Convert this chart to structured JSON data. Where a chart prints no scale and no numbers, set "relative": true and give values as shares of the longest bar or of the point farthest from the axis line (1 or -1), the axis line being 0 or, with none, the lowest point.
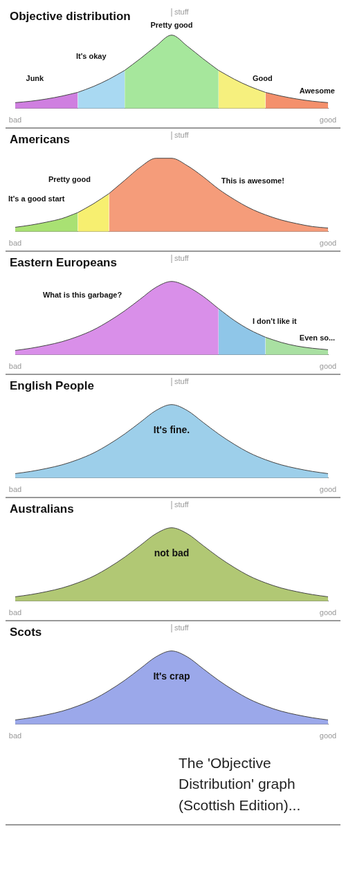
{
  "chart_data": [
    {
      "type": "area",
      "title": "Objective distribution",
      "ylabel": "stuff",
      "relative": true,
      "tick_labels": "x",
      "categories": [
        "bad",
        null,
        null,
        null,
        null,
        null,
        null,
        null,
        null,
        null,
        null,
        null,
        null,
        null,
        null,
        null,
        null,
        null,
        null,
        null,
        "good"
      ],
      "series": [
        {
          "name": "Junk",
          "color": "#cf7fe0",
          "values": [
            0.08,
            0.1,
            0.13,
            0.17,
            0.22,
            null,
            null,
            null,
            null,
            null,
            null,
            null,
            null,
            null,
            null,
            null,
            null,
            null,
            null,
            null,
            null
          ]
        },
        {
          "name": "It's okay",
          "color": "#a9d9f2",
          "values": [
            null,
            null,
            null,
            null,
            0.22,
            0.3,
            0.4,
            0.52,
            null,
            null,
            null,
            null,
            null,
            null,
            null,
            null,
            null,
            null,
            null,
            null,
            null
          ]
        },
        {
          "name": "Pretty good",
          "color": "#a6e79c",
          "values": [
            null,
            null,
            null,
            null,
            null,
            null,
            null,
            0.52,
            0.68,
            0.85,
            1,
            0.85,
            0.68,
            0.52,
            null,
            null,
            null,
            null,
            null,
            null,
            null
          ]
        },
        {
          "name": "Good",
          "color": "#f6f07e",
          "values": [
            null,
            null,
            null,
            null,
            null,
            null,
            null,
            null,
            null,
            null,
            null,
            null,
            null,
            0.52,
            0.4,
            0.3,
            0.22,
            null,
            null,
            null,
            null
          ]
        },
        {
          "name": "Awesome",
          "color": "#f4906c",
          "values": [
            null,
            null,
            null,
            null,
            null,
            null,
            null,
            null,
            null,
            null,
            null,
            null,
            null,
            null,
            null,
            null,
            0.22,
            0.17,
            0.13,
            0.1,
            0.08
          ]
        }
      ]
    },
    {
      "type": "area",
      "title": "Americans",
      "ylabel": "stuff",
      "relative": true,
      "tick_labels": "x",
      "categories": [
        "bad",
        null,
        null,
        null,
        null,
        null,
        null,
        null,
        null,
        null,
        null,
        null,
        null,
        null,
        null,
        null,
        null,
        null,
        null,
        null,
        "good"
      ],
      "series": [
        {
          "name": "It's a good start",
          "color": "#a9e173",
          "values": [
            0.06,
            0.09,
            0.13,
            0.18,
            0.26,
            null,
            null,
            null,
            null,
            null,
            null,
            null,
            null,
            null,
            null,
            null,
            null,
            null,
            null,
            null,
            null
          ]
        },
        {
          "name": "Pretty good",
          "color": "#f7ef70",
          "values": [
            null,
            null,
            null,
            null,
            0.26,
            0.38,
            0.52,
            null,
            null,
            null,
            null,
            null,
            null,
            null,
            null,
            null,
            null,
            null,
            null,
            null,
            null
          ]
        },
        {
          "name": "This is awesome!",
          "color": "#f59c7a",
          "values": [
            null,
            null,
            null,
            null,
            null,
            null,
            0.52,
            0.7,
            0.88,
            1,
            1,
            0.9,
            0.75,
            0.58,
            0.44,
            0.32,
            0.23,
            0.16,
            0.11,
            0.07,
            0.05
          ]
        }
      ]
    },
    {
      "type": "area",
      "title": "Eastern Europeans",
      "ylabel": "stuff",
      "relative": true,
      "tick_labels": "x",
      "categories": [
        "bad",
        null,
        null,
        null,
        null,
        null,
        null,
        null,
        null,
        null,
        null,
        null,
        null,
        null,
        null,
        null,
        null,
        null,
        null,
        null,
        "good"
      ],
      "series": [
        {
          "name": "What is this garbage?",
          "color": "#d98fe9",
          "values": [
            0.06,
            0.09,
            0.13,
            0.18,
            0.25,
            0.34,
            0.46,
            0.6,
            0.76,
            0.92,
            1,
            0.93,
            0.8,
            0.63,
            null,
            null,
            null,
            null,
            null,
            null,
            null
          ]
        },
        {
          "name": "I don't like it",
          "color": "#8fc6e8",
          "values": [
            null,
            null,
            null,
            null,
            null,
            null,
            null,
            null,
            null,
            null,
            null,
            null,
            null,
            0.63,
            0.47,
            0.34,
            0.24,
            null,
            null,
            null,
            null
          ]
        },
        {
          "name": "Even so...",
          "color": "#a9e0a2",
          "values": [
            null,
            null,
            null,
            null,
            null,
            null,
            null,
            null,
            null,
            null,
            null,
            null,
            null,
            null,
            null,
            null,
            0.24,
            0.17,
            0.12,
            0.09,
            0.07
          ]
        }
      ]
    },
    {
      "type": "area",
      "title": "English People",
      "ylabel": "stuff",
      "relative": true,
      "tick_labels": "x",
      "categories": [
        "bad",
        null,
        null,
        null,
        null,
        null,
        null,
        null,
        null,
        null,
        null,
        null,
        null,
        null,
        null,
        null,
        null,
        null,
        null,
        null,
        "good"
      ],
      "series": [
        {
          "name": "It's fine.",
          "color": "#9dcfea",
          "values": [
            0.06,
            0.09,
            0.13,
            0.18,
            0.25,
            0.34,
            0.46,
            0.6,
            0.76,
            0.92,
            1,
            0.92,
            0.76,
            0.6,
            0.46,
            0.34,
            0.25,
            0.18,
            0.13,
            0.09,
            0.06
          ]
        }
      ]
    },
    {
      "type": "area",
      "title": "Australians",
      "ylabel": "stuff",
      "relative": true,
      "tick_labels": "x",
      "categories": [
        "bad",
        null,
        null,
        null,
        null,
        null,
        null,
        null,
        null,
        null,
        null,
        null,
        null,
        null,
        null,
        null,
        null,
        null,
        null,
        null,
        "good"
      ],
      "series": [
        {
          "name": "not bad",
          "color": "#b1c874",
          "values": [
            0.06,
            0.09,
            0.13,
            0.18,
            0.25,
            0.34,
            0.46,
            0.6,
            0.76,
            0.92,
            1,
            0.92,
            0.76,
            0.6,
            0.46,
            0.34,
            0.25,
            0.18,
            0.13,
            0.09,
            0.06
          ]
        }
      ]
    },
    {
      "type": "area",
      "title": "Scots",
      "ylabel": "stuff",
      "relative": true,
      "tick_labels": "x",
      "categories": [
        "bad",
        null,
        null,
        null,
        null,
        null,
        null,
        null,
        null,
        null,
        null,
        null,
        null,
        null,
        null,
        null,
        null,
        null,
        null,
        null,
        "good"
      ],
      "annotations": [
        "The 'Objective Distribution' graph (Scottish Edition)..."
      ],
      "series": [
        {
          "name": "It's crap",
          "color": "#9ba8ea",
          "values": [
            0.06,
            0.09,
            0.13,
            0.18,
            0.25,
            0.34,
            0.46,
            0.6,
            0.76,
            0.92,
            1,
            0.92,
            0.76,
            0.6,
            0.46,
            0.34,
            0.25,
            0.18,
            0.13,
            0.09,
            0.06
          ]
        }
      ]
    }
  ]
}
